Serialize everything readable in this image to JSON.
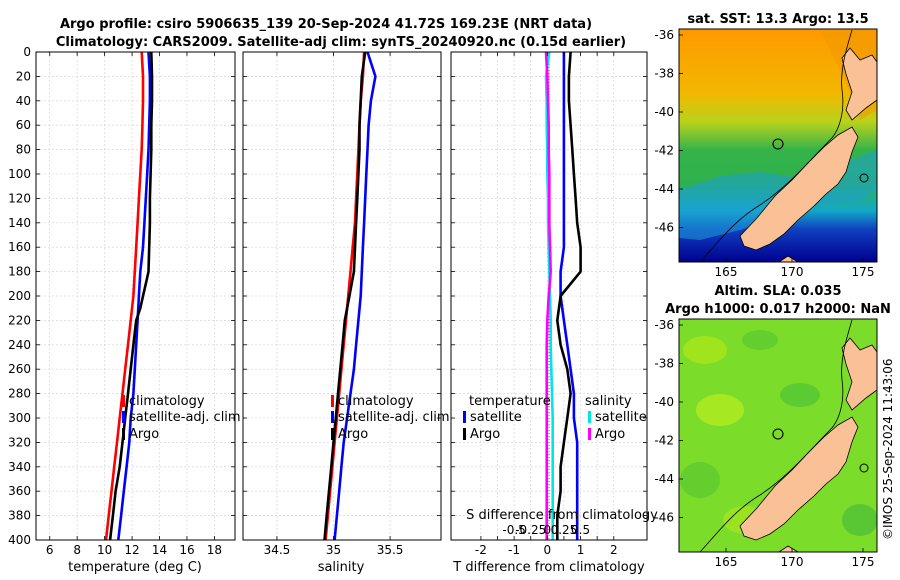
{
  "figure": {
    "title_line1": "Argo profile: csiro 5906635_139 20-Sep-2024 41.72S 169.23E (NRT data)",
    "title_line2": "Climatology: CARS2009. Satellite-adj clim: synTS_20240920.nc (0.15d earlier)",
    "watermark": "©IMOS 25-Sep-2024 11:43:06"
  },
  "colors": {
    "climatology": "#ff0000",
    "satellite": "#0000ff",
    "argo": "#000000",
    "sal_satellite": "#00e5e5",
    "sal_argo": "#ff00ff",
    "land": "#f9c195",
    "sea_warm": "#ffa500",
    "sea_mid": "#3cb043",
    "sea_cold": "#0000a8",
    "sla": "#7cdc2a"
  },
  "chart_data": [
    {
      "id": "temperature",
      "type": "line",
      "xlabel": "temperature (deg C)",
      "ylabel": "",
      "xlim": [
        5,
        19.5
      ],
      "ylim": [
        400,
        0
      ],
      "xticks": [
        6,
        8,
        10,
        12,
        14,
        16,
        18
      ],
      "yticks": [
        0,
        20,
        40,
        60,
        80,
        100,
        120,
        140,
        160,
        180,
        200,
        220,
        240,
        260,
        280,
        300,
        320,
        340,
        360,
        380,
        400
      ],
      "grid": true,
      "legend": [
        "climatology",
        "satellite-adj. clim",
        "Argo"
      ],
      "series": [
        {
          "name": "climatology",
          "color_key": "climatology",
          "depth": [
            0,
            20,
            40,
            60,
            80,
            100,
            120,
            140,
            160,
            180,
            200,
            220,
            240,
            260,
            280,
            300,
            320,
            340,
            360,
            380,
            400
          ],
          "values": [
            12.7,
            12.8,
            12.8,
            12.75,
            12.7,
            12.6,
            12.5,
            12.4,
            12.3,
            12.2,
            12.1,
            11.9,
            11.7,
            11.5,
            11.3,
            11.1,
            10.9,
            10.7,
            10.5,
            10.3,
            10.1
          ]
        },
        {
          "name": "satellite-adj. clim",
          "color_key": "satellite",
          "depth": [
            0,
            20,
            40,
            60,
            80,
            100,
            120,
            140,
            160,
            180,
            200,
            220,
            240,
            260,
            280,
            300,
            320,
            340,
            360,
            380,
            400
          ],
          "values": [
            13.2,
            13.3,
            13.3,
            13.25,
            13.2,
            13.1,
            13.0,
            12.9,
            12.8,
            12.6,
            12.5,
            12.4,
            12.3,
            12.2,
            12.1,
            11.9,
            11.8,
            11.6,
            11.4,
            11.2,
            11.0
          ]
        },
        {
          "name": "Argo",
          "color_key": "argo",
          "depth": [
            0,
            20,
            40,
            60,
            80,
            100,
            120,
            140,
            160,
            180,
            190,
            200,
            210,
            220,
            240,
            260,
            280,
            300,
            320,
            340,
            360,
            380,
            400
          ],
          "values": [
            13.4,
            13.45,
            13.45,
            13.4,
            13.4,
            13.35,
            13.3,
            13.3,
            13.25,
            13.2,
            13.0,
            12.8,
            12.6,
            12.3,
            12.1,
            11.9,
            11.7,
            11.5,
            11.3,
            11.1,
            10.8,
            10.6,
            10.4
          ]
        }
      ]
    },
    {
      "id": "salinity",
      "type": "line",
      "xlabel": "salinity",
      "xlim": [
        34.2,
        35.95
      ],
      "ylim": [
        400,
        0
      ],
      "xticks": [
        34.5,
        35,
        35.5
      ],
      "grid": true,
      "legend": [
        "climatology",
        "satellite-adj. clim",
        "Argo"
      ],
      "series": [
        {
          "name": "climatology",
          "color_key": "climatology",
          "depth": [
            0,
            20,
            40,
            60,
            80,
            100,
            120,
            140,
            160,
            180,
            200,
            220,
            240,
            260,
            280,
            300,
            320,
            340,
            360,
            380,
            400
          ],
          "values": [
            35.27,
            35.26,
            35.24,
            35.23,
            35.22,
            35.21,
            35.2,
            35.19,
            35.17,
            35.15,
            35.13,
            35.11,
            35.09,
            35.07,
            35.05,
            35.03,
            35.01,
            34.99,
            34.97,
            34.95,
            34.93
          ]
        },
        {
          "name": "satellite-adj. clim",
          "color_key": "satellite",
          "depth": [
            0,
            20,
            40,
            60,
            80,
            100,
            120,
            140,
            160,
            180,
            200,
            220,
            240,
            260,
            280,
            300,
            320,
            340,
            360,
            380,
            400
          ],
          "values": [
            35.3,
            35.37,
            35.33,
            35.31,
            35.3,
            35.29,
            35.28,
            35.27,
            35.26,
            35.25,
            35.24,
            35.22,
            35.2,
            35.18,
            35.15,
            35.12,
            35.09,
            35.07,
            35.05,
            35.03,
            35.01
          ]
        },
        {
          "name": "Argo",
          "color_key": "argo",
          "depth": [
            0,
            20,
            40,
            60,
            80,
            100,
            120,
            140,
            160,
            180,
            200,
            220,
            240,
            260,
            280,
            300,
            320,
            340,
            360,
            380,
            400
          ],
          "values": [
            35.28,
            35.25,
            35.24,
            35.23,
            35.23,
            35.22,
            35.21,
            35.2,
            35.19,
            35.18,
            35.14,
            35.1,
            35.08,
            35.06,
            35.04,
            35.02,
            35.0,
            34.98,
            34.96,
            34.94,
            34.92
          ]
        }
      ]
    },
    {
      "id": "differences",
      "type": "line",
      "xlabel": "T difference from climatology",
      "xlabel2": "S difference from climatology",
      "xlim": [
        -2.9,
        3.0
      ],
      "ylim": [
        400,
        0
      ],
      "xticks": [
        -2,
        -1.5,
        -1,
        -0.5,
        0,
        0.5,
        1,
        1.5,
        2
      ],
      "xtick_labels": [
        "-2",
        "",
        "-1",
        "",
        "0",
        "",
        "1",
        "",
        "2"
      ],
      "s_xticks": [
        -0.5,
        -0.25,
        0,
        0.25,
        0.5
      ],
      "s_xtick_labels": [
        "-0.5",
        "-0.25",
        "0",
        "0.25",
        "0.5"
      ],
      "grid": true,
      "legend_temperature_title": "temperature",
      "legend_salinity_title": "salinity",
      "legend_temperature": [
        "satellite",
        "Argo"
      ],
      "legend_salinity": [
        "satellite",
        "Argo"
      ],
      "series": [
        {
          "name": "temperature satellite",
          "color_key": "satellite",
          "depth": [
            0,
            20,
            40,
            60,
            80,
            100,
            120,
            140,
            160,
            180,
            200,
            220,
            240,
            260,
            280,
            300,
            320,
            340,
            360,
            380,
            400
          ],
          "values": [
            0.5,
            0.5,
            0.5,
            0.5,
            0.5,
            0.5,
            0.5,
            0.5,
            0.5,
            0.4,
            0.4,
            0.5,
            0.6,
            0.7,
            0.8,
            0.8,
            0.9,
            0.9,
            0.9,
            0.9,
            0.9
          ]
        },
        {
          "name": "temperature Argo",
          "color_key": "argo",
          "depth": [
            0,
            20,
            40,
            60,
            80,
            100,
            120,
            140,
            160,
            180,
            200,
            220,
            240,
            260,
            280,
            300,
            320,
            340,
            360,
            380,
            400
          ],
          "values": [
            0.7,
            0.65,
            0.65,
            0.7,
            0.75,
            0.8,
            0.85,
            0.9,
            1.0,
            1.0,
            0.4,
            0.3,
            0.4,
            0.6,
            0.7,
            0.6,
            0.5,
            0.4,
            0.4,
            0.3,
            0.3
          ]
        },
        {
          "name": "salinity satellite",
          "color_key": "sal_satellite",
          "depth": [
            0,
            20,
            40,
            60,
            80,
            100,
            120,
            140,
            160,
            180,
            200,
            220,
            240,
            260,
            280,
            300,
            320,
            340,
            360,
            380,
            400
          ],
          "values": [
            0.03,
            -0.02,
            -0.01,
            -0.01,
            0.0,
            0.0,
            0.01,
            0.01,
            0.02,
            0.03,
            0.04,
            0.05,
            0.05,
            0.06,
            0.07,
            0.08,
            0.08,
            0.08,
            0.08,
            0.08,
            0.08
          ]
        },
        {
          "name": "salinity Argo",
          "color_key": "sal_argo",
          "depth": [
            0,
            20,
            40,
            60,
            80,
            100,
            120,
            140,
            160,
            180,
            200,
            220,
            240,
            260,
            280,
            300,
            320,
            340,
            360,
            380,
            400
          ],
          "values": [
            -0.02,
            0.0,
            0.01,
            0.02,
            0.02,
            0.03,
            0.03,
            0.03,
            0.04,
            0.05,
            0.02,
            0.0,
            -0.01,
            -0.01,
            -0.01,
            -0.01,
            -0.01,
            -0.01,
            -0.01,
            -0.01,
            -0.01
          ]
        }
      ]
    }
  ],
  "maps": [
    {
      "id": "sst",
      "title_line1": "sat. SST: 13.3 Argo: 13.5",
      "title_line2": "",
      "xticks": [
        "165",
        "170",
        "175"
      ],
      "yticks": [
        "-36",
        "-38",
        "-40",
        "-42",
        "-44",
        "-46"
      ]
    },
    {
      "id": "sla",
      "title_line1": "Altim. SLA: 0.035",
      "title_line2": "Argo h1000: 0.017 h2000: NaN",
      "xticks": [
        "165",
        "170",
        "175"
      ],
      "yticks": [
        "-36",
        "-38",
        "-40",
        "-42",
        "-44",
        "-46"
      ]
    }
  ]
}
